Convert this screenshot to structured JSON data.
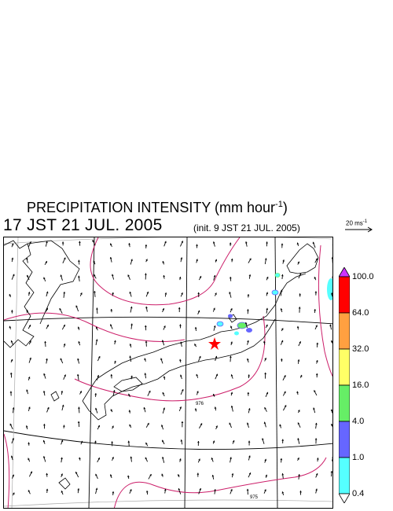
{
  "title_main": "PRECIPITATION INTENSITY (mm hour",
  "title_exp": "-1",
  "title_close": ")",
  "valid_time": "17 JST 21 JUL. 2005",
  "init_time": "(init. 9 JST 21 JUL. 2005)",
  "ref_vector": {
    "label": "20 ms",
    "exp": "-1"
  },
  "colorbar": {
    "ticks": [
      "100.0",
      "64.0",
      "32.0",
      "16.0",
      "4.0",
      "1.0",
      "0.4"
    ],
    "colors": [
      "#ff0000",
      "#ffa040",
      "#ffff66",
      "#66ee66",
      "#6666ff",
      "#55ffff"
    ],
    "over_color": "#cc33ff",
    "under_color": "#ffffff"
  },
  "contours": [
    "976",
    "975"
  ],
  "colors": {
    "contour": "#cc1f6a",
    "grid": "#aaaaaa",
    "coast": "#000000",
    "marker": "#ff0000"
  }
}
